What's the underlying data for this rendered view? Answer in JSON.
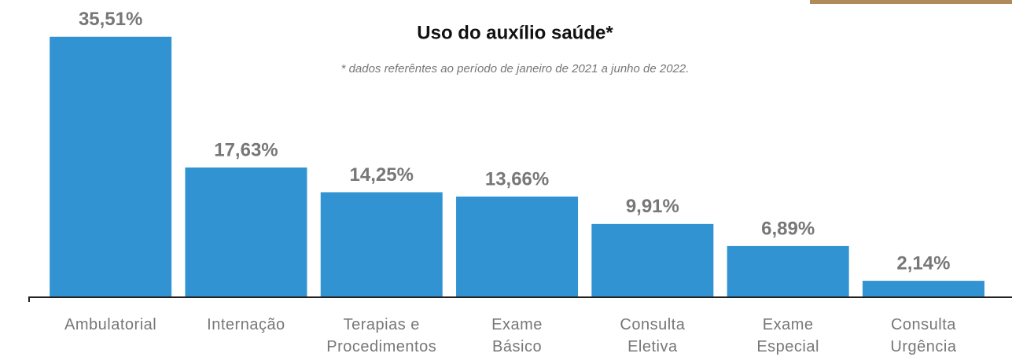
{
  "chart_data": {
    "type": "bar",
    "title": "Uso do auxílio saúde*",
    "subtitle": "* dados referêntes ao período de janeiro de 2021 a junho de 2022.",
    "categories": [
      "Ambulatorial",
      "Internação",
      "Terapias e\nProcedimentos",
      "Exame\nBásico",
      "Consulta\nEletiva",
      "Exame\nEspecial",
      "Consulta\nUrgência"
    ],
    "values": [
      35.51,
      17.63,
      14.25,
      13.66,
      9.91,
      6.89,
      2.14
    ],
    "value_labels": [
      "35,51%",
      "17,63%",
      "14,25%",
      "13,66%",
      "9,91%",
      "6,89%",
      "2,14%"
    ],
    "color": "#3193d2",
    "ylim": [
      0,
      40
    ]
  }
}
